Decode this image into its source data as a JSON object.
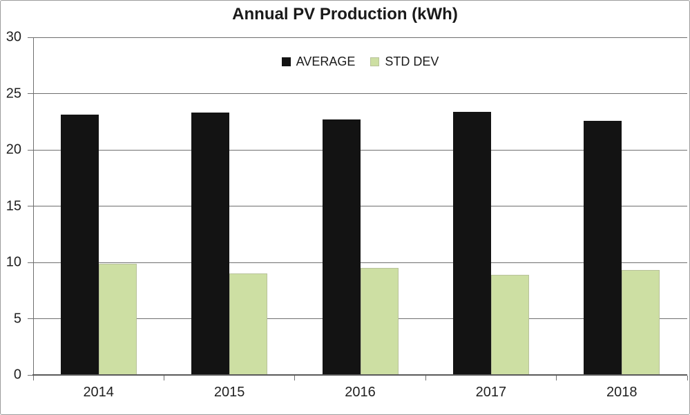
{
  "chart_data": {
    "type": "bar",
    "title": "Annual PV Production (kWh)",
    "categories": [
      "2014",
      "2015",
      "2016",
      "2017",
      "2018"
    ],
    "series": [
      {
        "name": "AVERAGE",
        "color": "#131313",
        "border_color": "#000000",
        "values": [
          23.1,
          23.3,
          22.7,
          23.4,
          22.6
        ]
      },
      {
        "name": "STD DEV",
        "color": "#cddfa3",
        "border_color": "#b8c29a",
        "values": [
          9.9,
          9.0,
          9.5,
          8.9,
          9.3
        ]
      }
    ],
    "xlabel": "",
    "ylabel": "",
    "ylim": [
      0,
      30
    ],
    "yticks": [
      0,
      5,
      10,
      15,
      20,
      25,
      30
    ],
    "grid": true,
    "legend_position": "top-center",
    "colors": {
      "gridline": "#6e6e6e",
      "axis": "#595959",
      "text": "#1f1f1f",
      "frame": "#9b9b9b",
      "background": "#ffffff"
    }
  }
}
